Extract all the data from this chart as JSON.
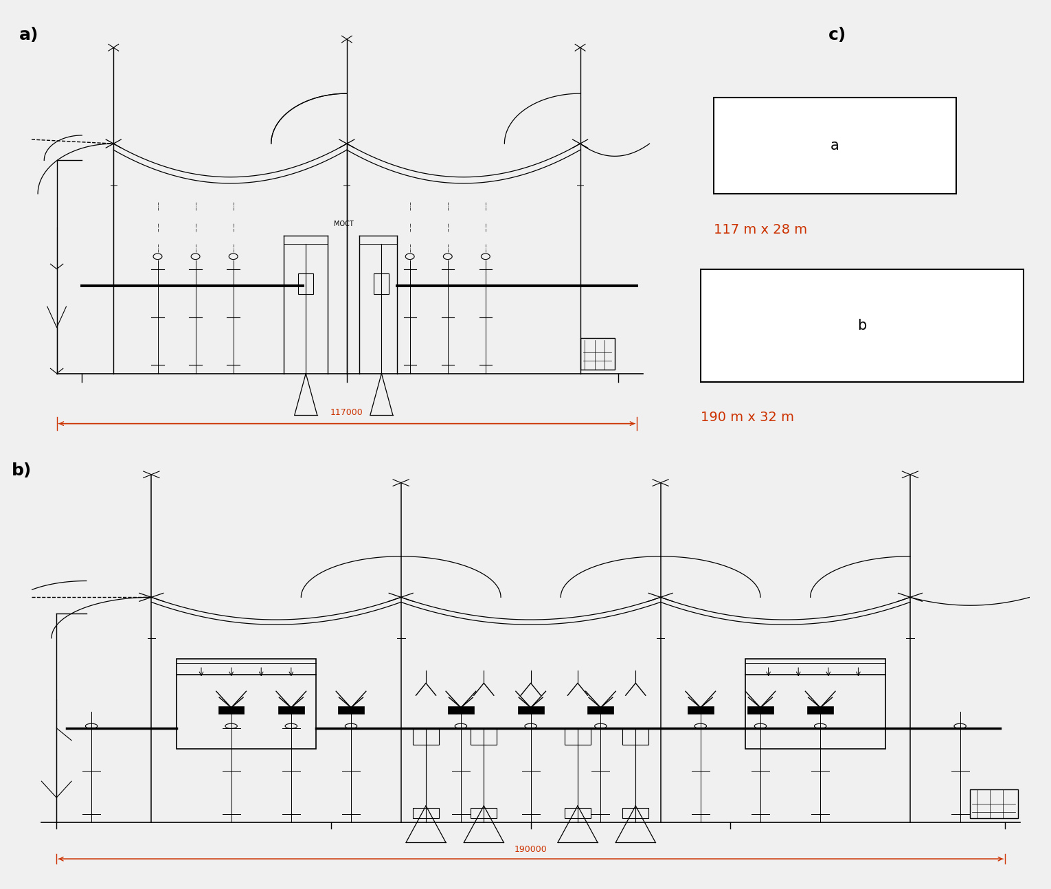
{
  "bg_color": "#f0f0f0",
  "line_color": "#000000",
  "red_color": "#cc3300",
  "label_a": "a)",
  "label_b": "b)",
  "label_c": "c)",
  "dim_a": "117 m x 28 m",
  "dim_b": "190 m x 32 m",
  "dim_label_117000": "117000",
  "dim_label_190000": "190000",
  "rect_a_label": "a",
  "rect_b_label": "b",
  "title_fontsize": 18,
  "label_fontsize": 16,
  "dim_fontsize": 14
}
